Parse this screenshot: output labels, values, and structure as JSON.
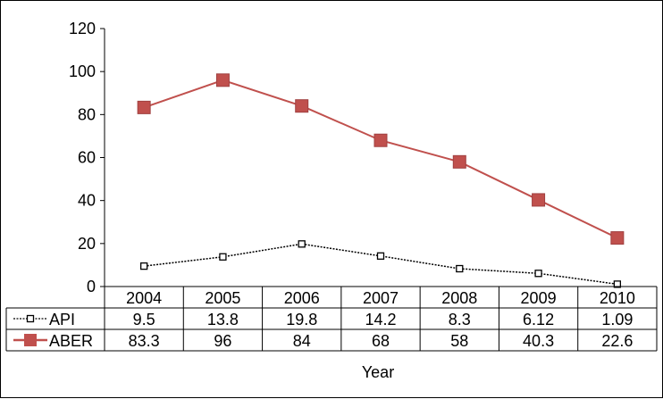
{
  "chart_data": {
    "type": "line",
    "categories": [
      "2004",
      "2005",
      "2006",
      "2007",
      "2008",
      "2009",
      "2010"
    ],
    "series": [
      {
        "name": "API",
        "values": [
          9.5,
          13.8,
          19.8,
          14.2,
          8.3,
          6.12,
          1.09
        ],
        "color": "#000000",
        "marker": "hollow-square",
        "line_style": "dotted"
      },
      {
        "name": "ABER",
        "values": [
          83.3,
          96,
          84,
          68,
          58,
          40.3,
          22.6
        ],
        "color": "#c0504d",
        "marker": "filled-square",
        "line_style": "solid"
      }
    ],
    "data_table_values": [
      [
        "9.5",
        "13.8",
        "19.8",
        "14.2",
        "8.3",
        "6.12",
        "1.09"
      ],
      [
        "83.3",
        "96",
        "84",
        "68",
        "58",
        "40.3",
        "22.6"
      ]
    ],
    "xlabel": "Year",
    "ylabel": "",
    "ylim": [
      0,
      120
    ],
    "yticks": [
      "0",
      "20",
      "40",
      "60",
      "80",
      "100",
      "120"
    ],
    "grid": false,
    "legend": "data-table"
  }
}
